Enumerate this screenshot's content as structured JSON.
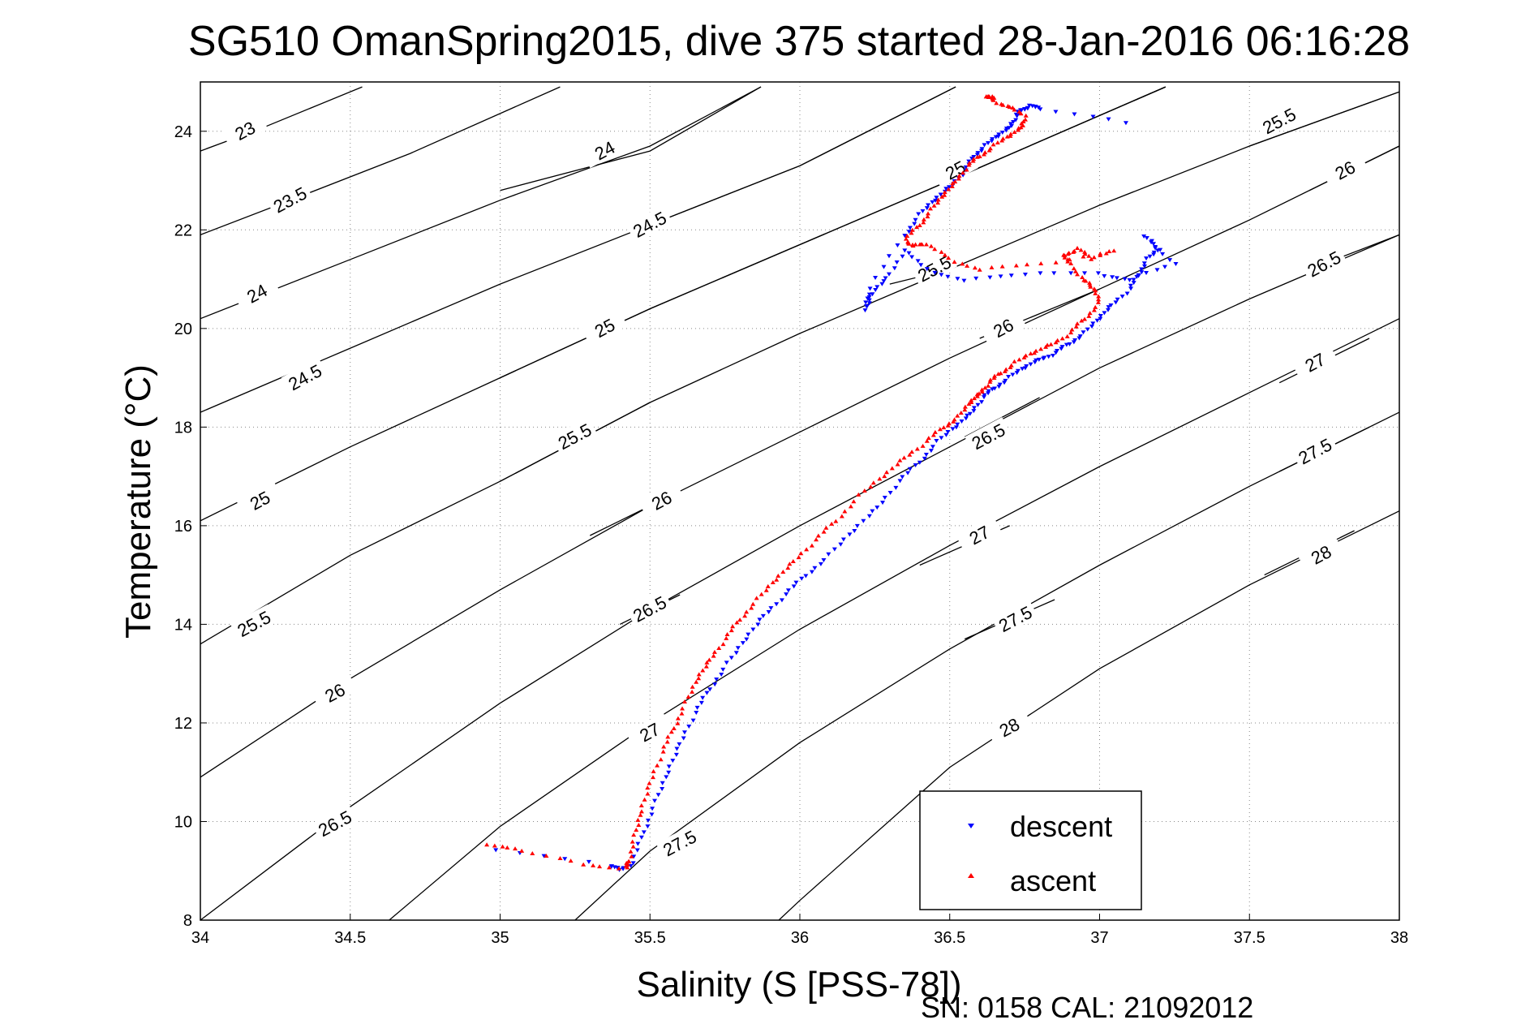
{
  "chart_data": {
    "type": "scatter",
    "title": "SG510 OmanSpring2015, dive 375 started 28-Jan-2016 06:16:28",
    "xlabel": "Salinity (S [PSS-78])",
    "ylabel": "Temperature (°C)",
    "footer": "SN: 0158  CAL: 21092012",
    "xlim": [
      34,
      38
    ],
    "ylim": [
      8,
      25
    ],
    "xticks": [
      "34",
      "34.5",
      "35",
      "35.5",
      "36",
      "36.5",
      "37",
      "37.5",
      "38"
    ],
    "yticks": [
      "8",
      "10",
      "12",
      "14",
      "16",
      "18",
      "20",
      "22",
      "24"
    ],
    "grid": true,
    "legend_position": "bottom-right",
    "density_contours": [
      {
        "label": "23",
        "points": [
          [
            34.0,
            23.6
          ],
          [
            34.2,
            24.05
          ],
          [
            34.54,
            24.9
          ]
        ],
        "label_at": [
          34.15,
          24.0
        ]
      },
      {
        "label": "23.5",
        "points": [
          [
            34.0,
            21.9
          ],
          [
            34.3,
            22.6
          ],
          [
            34.7,
            23.55
          ],
          [
            35.2,
            24.9
          ]
        ],
        "label_at": [
          34.3,
          22.6
        ]
      },
      {
        "label": "24",
        "points": [
          [
            34.0,
            20.2
          ],
          [
            34.5,
            21.4
          ],
          [
            35.0,
            22.6
          ],
          [
            35.5,
            23.7
          ],
          [
            35.87,
            24.9
          ]
        ],
        "label_at": [
          34.19,
          20.7
        ]
      },
      {
        "label": "24",
        "points": [
          [
            35.0,
            22.8
          ],
          [
            35.5,
            23.6
          ],
          [
            35.87,
            24.9
          ]
        ],
        "label_at": [
          35.35,
          23.6
        ]
      },
      {
        "label": "24.5",
        "points": [
          [
            34.0,
            18.3
          ],
          [
            34.5,
            19.6
          ],
          [
            35.0,
            20.9
          ],
          [
            35.5,
            22.1
          ],
          [
            36.0,
            23.3
          ],
          [
            36.52,
            24.9
          ]
        ],
        "label_at": [
          34.35,
          19.0
        ]
      },
      {
        "label": "24.5",
        "points": [
          [
            35.5,
            22.1
          ],
          [
            36.0,
            23.3
          ],
          [
            36.52,
            24.9
          ]
        ],
        "label_at": [
          35.5,
          22.1
        ]
      },
      {
        "label": "25",
        "points": [
          [
            34.0,
            16.1
          ],
          [
            34.5,
            17.6
          ],
          [
            35.0,
            19.0
          ],
          [
            35.5,
            20.4
          ],
          [
            36.0,
            21.7
          ],
          [
            36.5,
            23.0
          ],
          [
            37.22,
            24.9
          ]
        ],
        "label_at": [
          34.2,
          16.5
        ]
      },
      {
        "label": "25",
        "points": [
          [
            35.0,
            19.0
          ],
          [
            35.5,
            20.4
          ],
          [
            36.0,
            21.7
          ],
          [
            36.5,
            23.0
          ],
          [
            37.22,
            24.9
          ]
        ],
        "label_at": [
          35.35,
          20.0
        ]
      },
      {
        "label": "25",
        "points": [
          [
            36.5,
            23.0
          ],
          [
            37.22,
            24.9
          ]
        ],
        "label_at": [
          36.52,
          23.2
        ]
      },
      {
        "label": "25.5",
        "points": [
          [
            34.0,
            13.6
          ],
          [
            34.5,
            15.4
          ],
          [
            35.0,
            16.9
          ],
          [
            35.5,
            18.5
          ],
          [
            36.0,
            19.9
          ],
          [
            36.5,
            21.2
          ],
          [
            37.0,
            22.5
          ],
          [
            37.5,
            23.7
          ],
          [
            38.0,
            24.8
          ]
        ],
        "label_at": [
          34.18,
          14.0
        ]
      },
      {
        "label": "25.5",
        "points": [
          [
            35.0,
            16.9
          ],
          [
            35.5,
            18.5
          ]
        ],
        "label_at": [
          35.25,
          17.8
        ]
      },
      {
        "label": "25.5",
        "points": [
          [
            36.3,
            20.9
          ],
          [
            36.5,
            21.2
          ]
        ],
        "label_at": [
          36.45,
          21.2
        ]
      },
      {
        "label": "25.5",
        "points": [
          [
            37.5,
            23.7
          ],
          [
            38.0,
            24.8
          ]
        ],
        "label_at": [
          37.6,
          24.2
        ]
      },
      {
        "label": "26",
        "points": [
          [
            34.0,
            10.9
          ],
          [
            34.5,
            12.9
          ],
          [
            35.0,
            14.7
          ],
          [
            35.5,
            16.4
          ],
          [
            36.0,
            17.9
          ],
          [
            36.5,
            19.4
          ],
          [
            37.0,
            20.8
          ],
          [
            37.5,
            22.2
          ],
          [
            38.0,
            23.7
          ]
        ],
        "label_at": [
          34.45,
          12.6
        ]
      },
      {
        "label": "26",
        "points": [
          [
            35.3,
            15.8
          ],
          [
            35.5,
            16.4
          ]
        ],
        "label_at": [
          35.54,
          16.5
        ]
      },
      {
        "label": "26",
        "points": [
          [
            36.6,
            19.8
          ],
          [
            37.0,
            20.8
          ]
        ],
        "label_at": [
          36.68,
          20.0
        ]
      },
      {
        "label": "26",
        "points": [
          [
            37.7,
            22.8
          ],
          [
            38.0,
            23.7
          ]
        ],
        "label_at": [
          37.82,
          23.2
        ]
      },
      {
        "label": "26.5",
        "points": [
          [
            34.0,
            8.0
          ],
          [
            34.5,
            10.3
          ],
          [
            35.0,
            12.4
          ],
          [
            35.5,
            14.3
          ],
          [
            36.0,
            16.0
          ],
          [
            36.5,
            17.6
          ],
          [
            37.0,
            19.2
          ],
          [
            37.5,
            20.6
          ],
          [
            38.0,
            21.9
          ]
        ],
        "label_at": [
          34.45,
          9.95
        ]
      },
      {
        "label": "26.5",
        "points": [
          [
            35.4,
            14.0
          ],
          [
            35.6,
            14.6
          ]
        ],
        "label_at": [
          35.5,
          14.3
        ]
      },
      {
        "label": "26.5",
        "points": [
          [
            36.55,
            17.8
          ],
          [
            36.8,
            18.6
          ]
        ],
        "label_at": [
          36.63,
          17.8
        ]
      },
      {
        "label": "26.5",
        "points": [
          [
            37.7,
            21.2
          ],
          [
            38.0,
            21.9
          ]
        ],
        "label_at": [
          37.75,
          21.3
        ]
      },
      {
        "label": "27",
        "points": [
          [
            34.63,
            8.0
          ],
          [
            35.0,
            9.9
          ],
          [
            35.5,
            12.0
          ],
          [
            36.0,
            13.9
          ],
          [
            36.5,
            15.6
          ],
          [
            37.0,
            17.2
          ],
          [
            37.5,
            18.7
          ],
          [
            38.0,
            20.2
          ]
        ],
        "label_at": [
          35.5,
          11.8
        ]
      },
      {
        "label": "27",
        "points": [
          [
            36.4,
            15.2
          ],
          [
            36.7,
            16.0
          ]
        ],
        "label_at": [
          36.6,
          15.8
        ]
      },
      {
        "label": "27",
        "points": [
          [
            37.6,
            18.9
          ],
          [
            37.9,
            19.8
          ]
        ],
        "label_at": [
          37.72,
          19.3
        ]
      },
      {
        "label": "27.5",
        "points": [
          [
            35.25,
            8.0
          ],
          [
            35.5,
            9.4
          ],
          [
            36.0,
            11.6
          ],
          [
            36.5,
            13.5
          ],
          [
            37.0,
            15.2
          ],
          [
            37.5,
            16.8
          ],
          [
            38.0,
            18.3
          ]
        ],
        "label_at": [
          35.6,
          9.55
        ]
      },
      {
        "label": "27.5",
        "points": [
          [
            36.55,
            13.7
          ],
          [
            36.85,
            14.5
          ]
        ],
        "label_at": [
          36.72,
          14.1
        ]
      },
      {
        "label": "27.5",
        "points": [
          [
            37.6,
            17.1
          ],
          [
            37.9,
            18.0
          ]
        ],
        "label_at": [
          37.72,
          17.5
        ]
      },
      {
        "label": "28",
        "points": [
          [
            35.93,
            8.0
          ],
          [
            36.0,
            8.4
          ],
          [
            36.5,
            11.1
          ],
          [
            37.0,
            13.1
          ],
          [
            37.5,
            14.8
          ],
          [
            38.0,
            16.3
          ]
        ],
        "label_at": [
          36.7,
          11.9
        ]
      },
      {
        "label": "28",
        "points": [
          [
            37.55,
            15.0
          ],
          [
            37.85,
            15.9
          ]
        ],
        "label_at": [
          37.74,
          15.4
        ]
      }
    ],
    "series": [
      {
        "name": "descent",
        "color": "#0000ff",
        "marker": "triangle-down",
        "x": [
          34.99,
          35.37,
          35.4,
          35.44,
          35.48,
          35.52,
          35.56,
          35.6,
          35.65,
          35.7,
          35.76,
          35.82,
          35.88,
          35.95,
          36.02,
          36.1,
          36.18,
          36.26,
          36.33,
          36.4,
          36.46,
          36.52,
          36.57,
          36.61,
          36.65,
          36.7,
          36.75,
          36.8,
          36.85,
          36.9,
          36.95,
          37.0,
          37.04,
          37.1,
          37.13,
          37.16,
          37.2,
          37.15,
          37.25,
          37.1,
          37.0,
          36.75,
          36.55,
          36.42,
          36.35,
          36.29,
          36.24,
          36.22,
          36.23,
          36.35,
          36.4,
          36.45,
          36.5,
          36.55,
          36.58,
          36.62,
          36.66,
          36.7,
          36.72,
          36.74,
          36.77,
          36.8,
          37.09
        ],
        "y": [
          9.4,
          9.1,
          9.05,
          9.15,
          9.8,
          10.4,
          11.0,
          11.6,
          12.2,
          12.7,
          13.2,
          13.7,
          14.2,
          14.6,
          15.0,
          15.4,
          15.9,
          16.4,
          16.9,
          17.3,
          17.7,
          18.0,
          18.3,
          18.6,
          18.8,
          19.0,
          19.2,
          19.4,
          19.5,
          19.7,
          19.9,
          20.2,
          20.5,
          20.8,
          21.1,
          21.4,
          21.6,
          21.9,
          21.3,
          21.0,
          21.1,
          21.1,
          21.0,
          21.2,
          21.6,
          21.0,
          20.7,
          20.4,
          20.8,
          21.9,
          22.3,
          22.6,
          22.9,
          23.2,
          23.5,
          23.7,
          23.9,
          24.1,
          24.3,
          24.45,
          24.5,
          24.45,
          24.2
        ]
      },
      {
        "name": "ascent",
        "color": "#ff0000",
        "marker": "triangle-up",
        "x": [
          34.96,
          35.07,
          35.28,
          35.42,
          35.43,
          35.45,
          35.47,
          35.5,
          35.54,
          35.58,
          35.62,
          35.66,
          35.7,
          35.75,
          35.8,
          35.86,
          35.92,
          35.98,
          36.05,
          36.12,
          36.2,
          36.28,
          36.35,
          36.42,
          36.48,
          36.53,
          36.57,
          36.6,
          36.63,
          36.67,
          36.72,
          36.78,
          36.84,
          36.9,
          36.95,
          37.0,
          36.98,
          36.95,
          36.9,
          36.88,
          36.93,
          36.97,
          37.05,
          36.8,
          36.6,
          36.5,
          36.42,
          36.38,
          36.35,
          36.4,
          36.44,
          36.48,
          36.52,
          36.56,
          36.6,
          36.65,
          36.7,
          36.74,
          36.75,
          36.7,
          36.65,
          36.62,
          36.65
        ],
        "y": [
          9.5,
          9.4,
          9.15,
          9.05,
          9.2,
          9.7,
          10.2,
          10.8,
          11.4,
          11.9,
          12.4,
          12.9,
          13.3,
          13.7,
          14.1,
          14.5,
          14.9,
          15.3,
          15.7,
          16.1,
          16.6,
          17.0,
          17.4,
          17.7,
          18.0,
          18.2,
          18.5,
          18.7,
          18.9,
          19.1,
          19.3,
          19.5,
          19.7,
          19.9,
          20.2,
          20.5,
          20.8,
          21.0,
          21.3,
          21.5,
          21.6,
          21.4,
          21.6,
          21.3,
          21.2,
          21.4,
          21.7,
          21.7,
          21.8,
          22.1,
          22.4,
          22.7,
          23.0,
          23.3,
          23.5,
          23.7,
          23.9,
          24.1,
          24.3,
          24.5,
          24.6,
          24.7,
          24.7
        ]
      }
    ]
  }
}
